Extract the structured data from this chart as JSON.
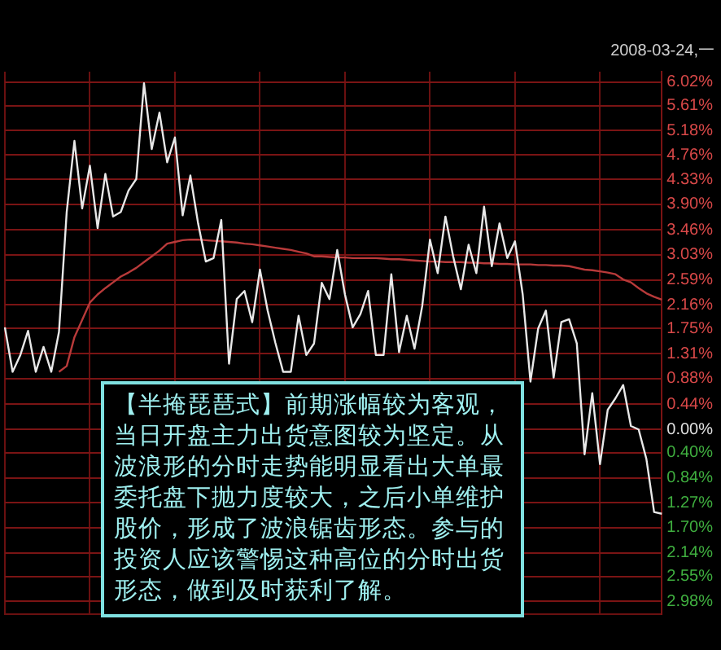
{
  "chart_data": {
    "type": "line",
    "subtitle": "2008-03-24,一",
    "categories": [
      null,
      null,
      null,
      null,
      null,
      null,
      null,
      null,
      null,
      null,
      null,
      null,
      null,
      null,
      null,
      null,
      null,
      null,
      null,
      null,
      null,
      null,
      null,
      null,
      null,
      null,
      null,
      null,
      null,
      null,
      null,
      null,
      null,
      null,
      null,
      null,
      null,
      null,
      null,
      null,
      null,
      null,
      null,
      null,
      null,
      null,
      null,
      null,
      null,
      null,
      null,
      null,
      null,
      null,
      null,
      null,
      null,
      null,
      null,
      null,
      null,
      null,
      null,
      null,
      null,
      null,
      null,
      null,
      null,
      null,
      null,
      null,
      null,
      null,
      null,
      null,
      null,
      null,
      null,
      null,
      null,
      null,
      null,
      null,
      null,
      null
    ],
    "series": [
      {
        "color": "#e8e8e8",
        "values": [
          1.77,
          1.0,
          1.29,
          1.71,
          1.0,
          1.43,
          1.0,
          1.69,
          3.77,
          5.0,
          3.83,
          4.57,
          3.49,
          4.43,
          3.69,
          3.77,
          4.14,
          4.34,
          6.0,
          4.86,
          5.49,
          4.63,
          5.06,
          3.71,
          4.4,
          3.57,
          2.91,
          2.97,
          3.63,
          1.14,
          2.26,
          2.4,
          1.86,
          2.77,
          2.06,
          1.5,
          1.0,
          1.0,
          1.97,
          1.29,
          1.49,
          2.54,
          2.26,
          3.11,
          2.34,
          1.77,
          2.0,
          2.4,
          1.29,
          1.29,
          2.69,
          1.34,
          1.97,
          1.4,
          2.14,
          3.29,
          2.71,
          3.69,
          3.0,
          2.43,
          3.2,
          2.71,
          3.86,
          2.83,
          3.57,
          2.97,
          3.26,
          2.34,
          0.83,
          1.75,
          2.06,
          0.9,
          1.86,
          1.91,
          1.49,
          -0.43,
          0.63,
          -0.6,
          0.34,
          0.54,
          0.77,
          0.06,
          0.0,
          -0.51,
          -1.43,
          -1.46
        ]
      },
      {
        "color": "#b83a3a",
        "values": [
          null,
          null,
          null,
          null,
          null,
          null,
          null,
          1.0,
          1.1,
          1.6,
          1.9,
          2.2,
          2.34,
          2.45,
          2.55,
          2.65,
          2.72,
          2.8,
          2.9,
          3.0,
          3.1,
          3.22,
          3.25,
          3.28,
          3.29,
          3.29,
          3.28,
          3.27,
          3.26,
          3.25,
          3.24,
          3.22,
          3.21,
          3.19,
          3.17,
          3.15,
          3.13,
          3.11,
          3.08,
          3.05,
          3.0,
          3.0,
          2.99,
          2.98,
          2.98,
          2.97,
          2.97,
          2.97,
          2.97,
          2.96,
          2.95,
          2.95,
          2.94,
          2.93,
          2.92,
          2.91,
          2.91,
          2.9,
          2.9,
          2.9,
          2.89,
          2.89,
          2.88,
          2.88,
          2.87,
          2.87,
          2.86,
          2.86,
          2.86,
          2.85,
          2.85,
          2.84,
          2.84,
          2.83,
          2.8,
          2.77,
          2.76,
          2.74,
          2.72,
          2.69,
          2.6,
          2.55,
          2.45,
          2.36,
          2.3,
          2.25
        ]
      }
    ],
    "ylim": [
      -3.2,
      6.2
    ],
    "yticks": [
      {
        "value": 6.02,
        "label": "6.02%"
      },
      {
        "value": 5.61,
        "label": "5.61%"
      },
      {
        "value": 5.18,
        "label": "5.18%"
      },
      {
        "value": 4.76,
        "label": "4.76%"
      },
      {
        "value": 4.33,
        "label": "4.33%"
      },
      {
        "value": 3.9,
        "label": "3.90%"
      },
      {
        "value": 3.46,
        "label": "3.46%"
      },
      {
        "value": 3.03,
        "label": "3.03%"
      },
      {
        "value": 2.59,
        "label": "2.59%"
      },
      {
        "value": 2.16,
        "label": "2.16%"
      },
      {
        "value": 1.75,
        "label": "1.75%"
      },
      {
        "value": 1.31,
        "label": "1.31%"
      },
      {
        "value": 0.88,
        "label": "0.88%"
      },
      {
        "value": 0.44,
        "label": "0.44%"
      },
      {
        "value": 0,
        "label": "0.00%"
      },
      {
        "value": -0.4,
        "label": "0.40%"
      },
      {
        "value": -0.84,
        "label": "0.84%"
      },
      {
        "value": -1.27,
        "label": "1.27%"
      },
      {
        "value": -1.7,
        "label": "1.70%"
      },
      {
        "value": -2.14,
        "label": "2.14%"
      },
      {
        "value": -2.55,
        "label": "2.55%"
      },
      {
        "value": -2.98,
        "label": "2.98%"
      }
    ],
    "grid": true,
    "legend": false,
    "marker": "none",
    "line_style": "solid",
    "tick_labels": "y",
    "annotations": [
      "【半掩琵琶式】前期涨幅较为客观，当日开盘主力出货意图较为坚定。从波浪形的分时走势能明显看出大单最委托盘下抛力度较大，之后小单维护股价，形成了波浪锯齿形态。参与的投资人应该警惕这种高位的分时出货形态，做到及时获利了解。"
    ]
  }
}
